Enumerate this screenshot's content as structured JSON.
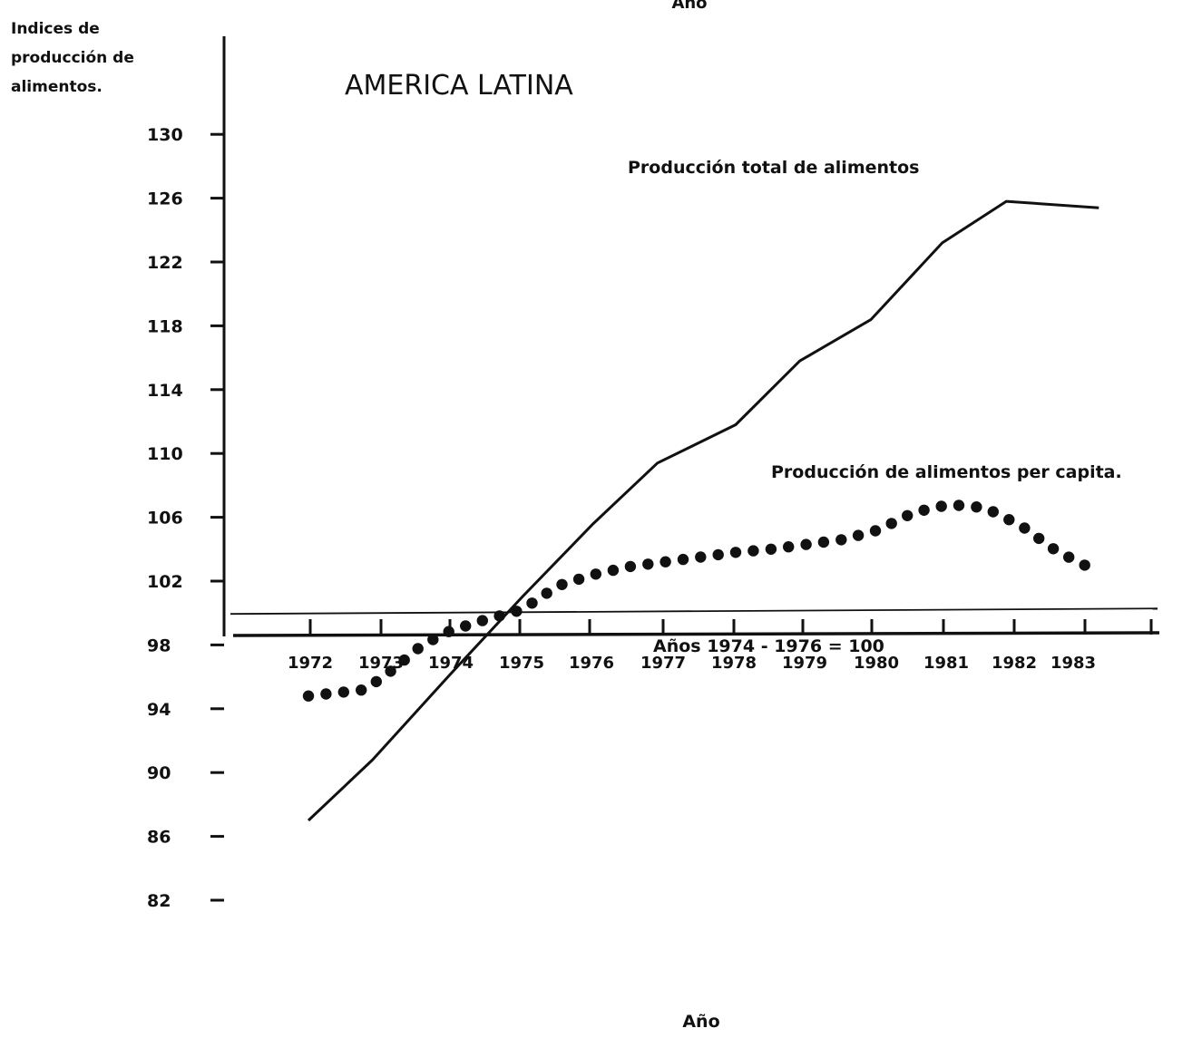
{
  "chart_data": {
    "type": "line",
    "title": "AMERICA LATINA",
    "ylabel_lines": [
      "Indices de",
      "producción de",
      "alimentos."
    ],
    "xlabel": "Año",
    "top_label": "Año",
    "yticks": [
      130,
      126,
      122,
      118,
      114,
      110,
      106,
      102,
      98,
      94,
      90,
      86,
      82
    ],
    "xtick_labels": [
      "1972",
      "1973",
      "1974",
      "1975",
      "1976",
      "1977",
      "1978",
      "1979",
      "1980",
      "1981",
      "1982",
      "1983"
    ],
    "baseline": {
      "value": 100,
      "label": "Años 1974 - 1976 = 100"
    },
    "grid": false,
    "series": [
      {
        "name": "Producción total de alimentos",
        "style": "solid",
        "x": [
          1972.0,
          1972.9,
          1974.0,
          1975.0,
          1976.0,
          1976.9,
          1978.0,
          1978.9,
          1979.9,
          1980.9,
          1981.8,
          1983.1
        ],
        "y": [
          87.0,
          90.8,
          96.2,
          101.0,
          105.6,
          109.4,
          111.8,
          115.8,
          118.4,
          123.2,
          125.8,
          125.4
        ]
      },
      {
        "name": "Producción de alimentos per capita.",
        "style": "dotted",
        "x": [
          1972.0,
          1972.8,
          1973.2,
          1973.6,
          1974.0,
          1974.5,
          1975.0,
          1975.5,
          1976.0,
          1976.5,
          1977.0,
          1977.5,
          1978.0,
          1978.5,
          1979.0,
          1979.5,
          1980.0,
          1980.5,
          1981.0,
          1981.5,
          1982.0,
          1982.5,
          1982.9
        ],
        "y": [
          94.8,
          95.2,
          96.5,
          98.0,
          98.9,
          99.6,
          100.2,
          101.7,
          102.4,
          102.9,
          103.2,
          103.5,
          103.8,
          104.0,
          104.3,
          104.6,
          105.2,
          106.3,
          106.8,
          106.6,
          105.5,
          103.9,
          103.0
        ]
      }
    ]
  }
}
